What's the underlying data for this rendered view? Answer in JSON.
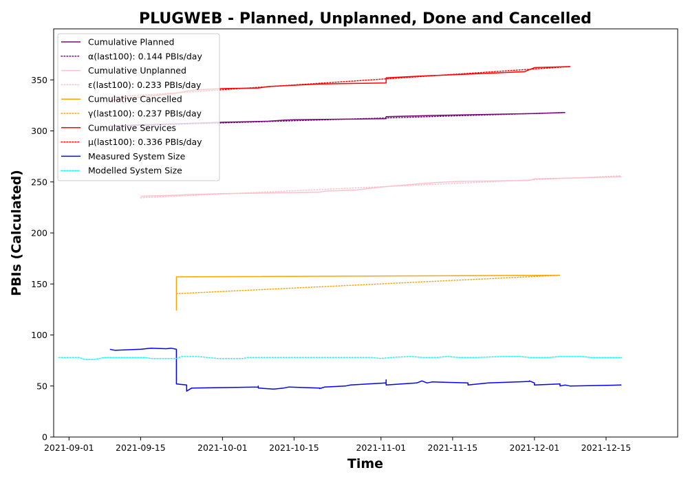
{
  "chart_data": {
    "type": "line",
    "title": "PLUGWEB - Planned, Unplanned, Done  and Cancelled",
    "xlabel": "Time",
    "ylabel": "PBIs (Calculated)",
    "xlim": [
      "2021-08-29",
      "2021-12-29"
    ],
    "ylim": [
      0,
      400
    ],
    "x_ticks": [
      "2021-09-01",
      "2021-09-15",
      "2021-10-01",
      "2021-10-15",
      "2021-11-01",
      "2021-11-15",
      "2021-12-01",
      "2021-12-15"
    ],
    "y_ticks": [
      0,
      50,
      100,
      150,
      200,
      250,
      300,
      350
    ],
    "grid": false,
    "legend_position": "top-left",
    "series": [
      {
        "name": "Cumulative Planned",
        "color": "#800080",
        "style": "solid",
        "points": [
          [
            "2021-09-09",
            305
          ],
          [
            "2021-09-15",
            306
          ],
          [
            "2021-09-22",
            307
          ],
          [
            "2021-10-01",
            308.5
          ],
          [
            "2021-10-10",
            309.5
          ],
          [
            "2021-10-13",
            310.5
          ],
          [
            "2021-10-15",
            311
          ],
          [
            "2021-10-25",
            311.5
          ],
          [
            "2021-11-02",
            312
          ],
          [
            "2021-11-02",
            314
          ],
          [
            "2021-11-10",
            315
          ],
          [
            "2021-11-20",
            316
          ],
          [
            "2021-12-01",
            317
          ],
          [
            "2021-12-07",
            318
          ]
        ]
      },
      {
        "name": "α(last100): 0.144 PBIs/day",
        "color": "#800080",
        "style": "dotted",
        "points": [
          [
            "2021-09-09",
            304.5
          ],
          [
            "2021-12-07",
            318
          ]
        ]
      },
      {
        "name": "Cumulative Unplanned",
        "color": "#ffc0cb",
        "style": "solid",
        "points": [
          [
            "2021-09-15",
            236
          ],
          [
            "2021-09-22",
            237
          ],
          [
            "2021-09-24",
            237.5
          ],
          [
            "2021-10-01",
            238.5
          ],
          [
            "2021-10-15",
            239.5
          ],
          [
            "2021-10-20",
            240
          ],
          [
            "2021-10-21",
            241
          ],
          [
            "2021-10-27",
            242
          ],
          [
            "2021-11-01",
            245
          ],
          [
            "2021-11-08",
            248
          ],
          [
            "2021-11-12",
            249.5
          ],
          [
            "2021-11-16",
            250.5
          ],
          [
            "2021-11-30",
            251.5
          ],
          [
            "2021-12-01",
            253
          ],
          [
            "2021-12-10",
            254
          ],
          [
            "2021-12-18",
            255
          ]
        ]
      },
      {
        "name": "ε(last100): 0.233 PBIs/day",
        "color": "#ffc0cb",
        "style": "dotted",
        "points": [
          [
            "2021-09-15",
            234.5
          ],
          [
            "2021-12-18",
            256
          ]
        ]
      },
      {
        "name": "Cumulative Cancelled",
        "color": "#ffa500",
        "style": "solid",
        "points": [
          [
            "2021-09-22",
            124
          ],
          [
            "2021-09-22",
            157
          ],
          [
            "2021-12-06",
            158.5
          ]
        ]
      },
      {
        "name": "γ(last100): 0.237 PBIs/day",
        "color": "#ffa500",
        "style": "dotted",
        "points": [
          [
            "2021-09-22",
            140.5
          ],
          [
            "2021-12-06",
            158.5
          ]
        ]
      },
      {
        "name": "Cumulative Services",
        "color": "#ff0000",
        "style": "solid",
        "points": [
          [
            "2021-09-09",
            330
          ],
          [
            "2021-09-22",
            337
          ],
          [
            "2021-09-25",
            340
          ],
          [
            "2021-10-01",
            341.5
          ],
          [
            "2021-10-08",
            342
          ],
          [
            "2021-10-10",
            343.5
          ],
          [
            "2021-10-20",
            346
          ],
          [
            "2021-11-02",
            347
          ],
          [
            "2021-11-02",
            352
          ],
          [
            "2021-11-10",
            354
          ],
          [
            "2021-11-20",
            356
          ],
          [
            "2021-11-29",
            358
          ],
          [
            "2021-12-01",
            362
          ],
          [
            "2021-12-08",
            363
          ]
        ]
      },
      {
        "name": "μ(last100): 0.336 PBIs/day",
        "color": "#ff0000",
        "style": "dotted",
        "points": [
          [
            "2021-09-09",
            333
          ],
          [
            "2021-12-08",
            363
          ]
        ]
      },
      {
        "name": "Measured System Size",
        "color": "#0000ff",
        "style": "solid",
        "points": [
          [
            "2021-09-09",
            86
          ],
          [
            "2021-09-10",
            85
          ],
          [
            "2021-09-15",
            86
          ],
          [
            "2021-09-17",
            87
          ],
          [
            "2021-09-20",
            86.5
          ],
          [
            "2021-09-21",
            87
          ],
          [
            "2021-09-22",
            86
          ],
          [
            "2021-09-22",
            52
          ],
          [
            "2021-09-24",
            51
          ],
          [
            "2021-09-24",
            45
          ],
          [
            "2021-09-25",
            48
          ],
          [
            "2021-10-08",
            49
          ],
          [
            "2021-10-08",
            50
          ],
          [
            "2021-10-08",
            48
          ],
          [
            "2021-10-11",
            47
          ],
          [
            "2021-10-13",
            48
          ],
          [
            "2021-10-14",
            49
          ],
          [
            "2021-10-20",
            48
          ],
          [
            "2021-10-20",
            47.5
          ],
          [
            "2021-10-21",
            49
          ],
          [
            "2021-10-25",
            50
          ],
          [
            "2021-10-26",
            51
          ],
          [
            "2021-11-02",
            53
          ],
          [
            "2021-11-02",
            56
          ],
          [
            "2021-11-02",
            51
          ],
          [
            "2021-11-08",
            53
          ],
          [
            "2021-11-09",
            55
          ],
          [
            "2021-11-10",
            53
          ],
          [
            "2021-11-11",
            54
          ],
          [
            "2021-11-18",
            53
          ],
          [
            "2021-11-18",
            51
          ],
          [
            "2021-11-22",
            53
          ],
          [
            "2021-11-30",
            54.5
          ],
          [
            "2021-11-30",
            55
          ],
          [
            "2021-12-01",
            53
          ],
          [
            "2021-12-01",
            51
          ],
          [
            "2021-12-06",
            52
          ],
          [
            "2021-12-06",
            50
          ],
          [
            "2021-12-07",
            51
          ],
          [
            "2021-12-08",
            50
          ],
          [
            "2021-12-18",
            51
          ]
        ]
      },
      {
        "name": "Modelled System Size",
        "color": "#00ffff",
        "style": "dotted",
        "points": [
          [
            "2021-08-30",
            78
          ],
          [
            "2021-09-03",
            78
          ],
          [
            "2021-09-04",
            76
          ],
          [
            "2021-09-06",
            76
          ],
          [
            "2021-09-08",
            78
          ],
          [
            "2021-09-16",
            78
          ],
          [
            "2021-09-17",
            77
          ],
          [
            "2021-09-22",
            77
          ],
          [
            "2021-09-23",
            79
          ],
          [
            "2021-09-26",
            79
          ],
          [
            "2021-09-28",
            78
          ],
          [
            "2021-09-30",
            77
          ],
          [
            "2021-10-05",
            77
          ],
          [
            "2021-10-06",
            78
          ],
          [
            "2021-10-30",
            78
          ],
          [
            "2021-11-01",
            77
          ],
          [
            "2021-11-03",
            78
          ],
          [
            "2021-11-07",
            79
          ],
          [
            "2021-11-09",
            78
          ],
          [
            "2021-11-12",
            78
          ],
          [
            "2021-11-14",
            79
          ],
          [
            "2021-11-16",
            78
          ],
          [
            "2021-11-20",
            78
          ],
          [
            "2021-11-25",
            79
          ],
          [
            "2021-11-28",
            79
          ],
          [
            "2021-11-30",
            78
          ],
          [
            "2021-12-04",
            78
          ],
          [
            "2021-12-06",
            79
          ],
          [
            "2021-12-10",
            79
          ],
          [
            "2021-12-12",
            78
          ],
          [
            "2021-12-18",
            78
          ]
        ]
      }
    ]
  }
}
